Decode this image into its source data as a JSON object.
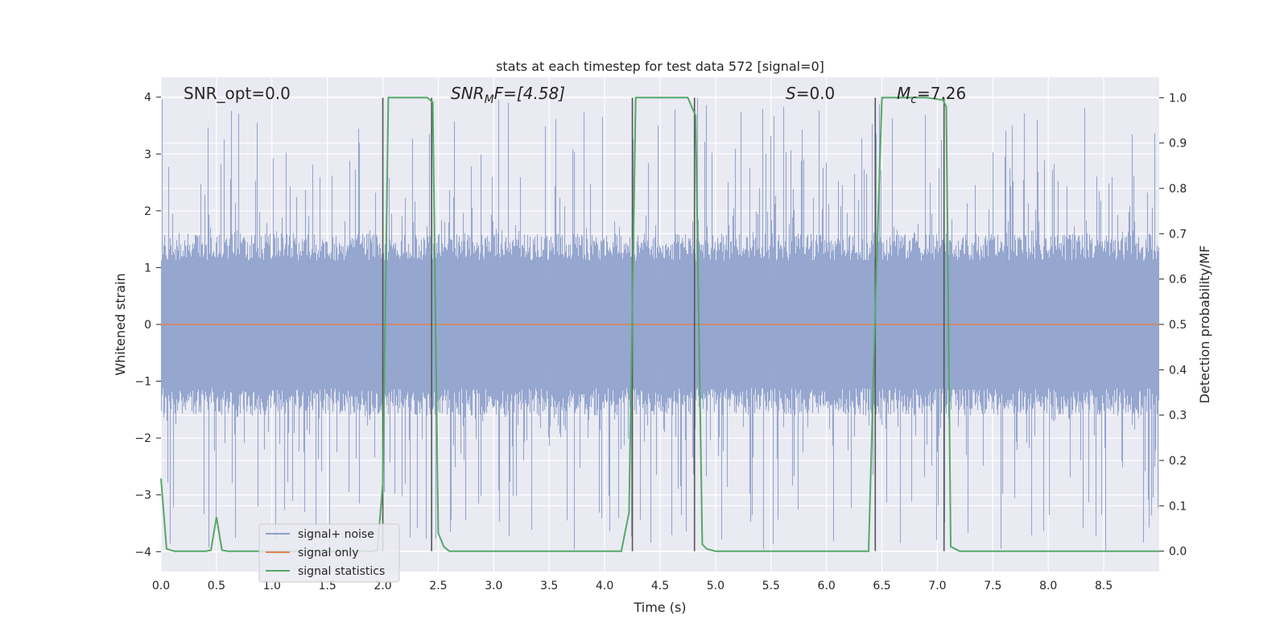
{
  "chart_data": {
    "type": "line",
    "title": "stats at each timestep for test data 572 [signal=0]",
    "xlabel": "Time (s)",
    "ylabel_left": "Whitened strain",
    "ylabel_right": "Detection probability/MF",
    "xlim": [
      0.0,
      9.0
    ],
    "ylim_left": [
      -4.35,
      4.35
    ],
    "ylim_right": [
      -0.045,
      1.045
    ],
    "x_ticks": [
      "0.0",
      "0.5",
      "1.0",
      "1.5",
      "2.0",
      "2.5",
      "3.0",
      "3.5",
      "4.0",
      "4.5",
      "5.0",
      "5.5",
      "6.0",
      "6.5",
      "7.0",
      "7.5",
      "8.0",
      "8.5"
    ],
    "y_ticks_left": [
      "−4",
      "−3",
      "−2",
      "−1",
      "0",
      "1",
      "2",
      "3",
      "4"
    ],
    "y_ticks_right": [
      "0.0",
      "0.1",
      "0.2",
      "0.3",
      "0.4",
      "0.5",
      "0.6",
      "0.7",
      "0.8",
      "0.9",
      "1.0"
    ],
    "grid": true,
    "legend_position": "lower-left",
    "colors": {
      "noise": "#8c9fcb",
      "signal_only": "#dd8452",
      "statistics": "#55a868",
      "vlines": "#555555",
      "background": "#eaeaf2",
      "grid": "#ffffff"
    },
    "annotations": {
      "snr_opt": "SNR_opt=0.0",
      "snr_mf_prefix": "SNR",
      "snr_mf_sub": "M",
      "snr_mf_suffix": "F=[4.58]",
      "s_label": "S",
      "s_value": "=0.0",
      "mc_label": "M",
      "mc_sub": "c",
      "mc_value": "=7.26"
    },
    "series": [
      {
        "name": "signal+ noise",
        "description_values": "whitened noise approximately uniform within ±1.6 with spikes up to about ±4",
        "envelope": [
          -1.6,
          1.6
        ],
        "peak_range": [
          -4.0,
          4.0
        ]
      },
      {
        "name": "signal only",
        "y_constant": 0.0
      },
      {
        "name": "signal statistics",
        "x": [
          0.0,
          0.05,
          0.12,
          0.2,
          0.3,
          0.4,
          0.45,
          0.5,
          0.55,
          0.6,
          0.7,
          1.0,
          1.5,
          1.9,
          1.95,
          2.0,
          2.05,
          2.1,
          2.4,
          2.45,
          2.5,
          2.55,
          2.6,
          3.0,
          3.5,
          4.0,
          4.15,
          4.22,
          4.28,
          4.35,
          4.5,
          4.75,
          4.82,
          4.88,
          4.92,
          5.0,
          5.5,
          6.0,
          6.38,
          6.45,
          6.5,
          6.6,
          6.9,
          7.05,
          7.08,
          7.12,
          7.2,
          7.5,
          8.0,
          8.5,
          9.0
        ],
        "y": [
          0.16,
          0.005,
          0.0,
          0.0,
          0.0,
          0.0,
          0.002,
          0.075,
          0.002,
          0.0,
          0.0,
          0.0,
          0.0,
          0.0,
          0.002,
          0.15,
          1.0,
          1.0,
          1.0,
          0.99,
          0.04,
          0.01,
          0.0,
          0.0,
          0.0,
          0.0,
          0.0,
          0.085,
          1.0,
          1.0,
          1.0,
          1.0,
          0.96,
          0.015,
          0.005,
          0.0,
          0.0,
          0.0,
          0.0,
          0.62,
          1.0,
          1.0,
          1.0,
          0.995,
          0.98,
          0.01,
          0.0,
          0.0,
          0.0,
          0.0,
          0.0
        ]
      }
    ],
    "vlines_x": [
      2.0,
      2.44,
      4.25,
      4.81,
      6.44,
      7.06
    ],
    "vline_range_right": [
      0.0,
      1.0
    ]
  },
  "legend": {
    "noise_label": "signal+ noise",
    "signal_label": "signal only",
    "stats_label": "signal statistics"
  }
}
